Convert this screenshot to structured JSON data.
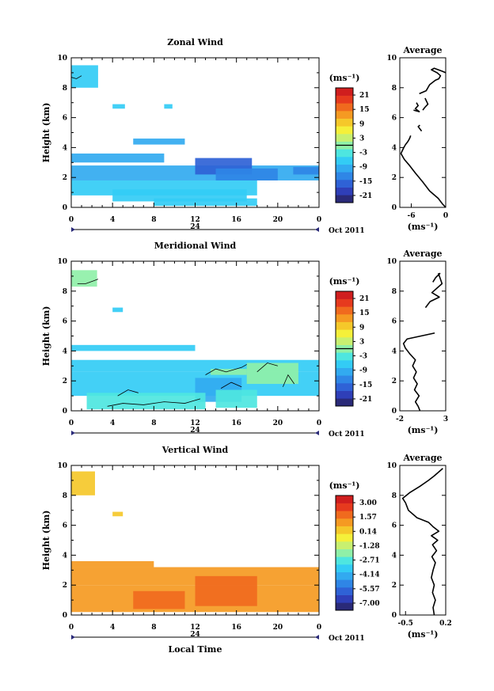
{
  "xlabel": "Local Time",
  "date_label": "Oct 2011",
  "day_label": "24",
  "avg_title": "Average",
  "units": "(ms⁻¹)",
  "height_label": "Height (km)",
  "palette": [
    "#2a2a78",
    "#2f3fb8",
    "#2f62d6",
    "#2f86e6",
    "#32aaf0",
    "#33ccf5",
    "#4ee6e0",
    "#8ff0a8",
    "#c8f070",
    "#f5f03a",
    "#f5c82a",
    "#f59a22",
    "#f06a1e",
    "#e63a1e",
    "#d01e1e"
  ],
  "chart_data": [
    {
      "type": "heatmap",
      "title": "Zonal Wind",
      "x_ticks": [
        "0",
        "4",
        "8",
        "12",
        "16",
        "20",
        "0"
      ],
      "xlim": [
        0,
        24
      ],
      "ylim": [
        0,
        10
      ],
      "y_ticks": [
        "0",
        "2",
        "4",
        "6",
        "8",
        "10"
      ],
      "colorbar": {
        "labels": [
          "21",
          "15",
          "9",
          "3",
          "-3",
          "-9",
          "-15",
          "-21"
        ],
        "range": [
          -24,
          24
        ],
        "contour_value": 0
      },
      "cells": [
        {
          "x0": 0.0,
          "x1": 2.6,
          "y0": 8.0,
          "y1": 9.5,
          "v": -6
        },
        {
          "x0": 4.0,
          "x1": 5.2,
          "y0": 6.6,
          "y1": 6.9,
          "v": -5
        },
        {
          "x0": 9.0,
          "x1": 9.8,
          "y0": 6.6,
          "y1": 6.9,
          "v": -5
        },
        {
          "x0": 6.0,
          "x1": 11.0,
          "y0": 4.2,
          "y1": 4.6,
          "v": -10
        },
        {
          "x0": 0.0,
          "x1": 9.0,
          "y0": 3.0,
          "y1": 3.6,
          "v": -11
        },
        {
          "x0": 0.0,
          "x1": 24.0,
          "y0": 1.8,
          "y1": 2.8,
          "v": -11
        },
        {
          "x0": 0.0,
          "x1": 18.0,
          "y0": 0.8,
          "y1": 1.8,
          "v": -8
        },
        {
          "x0": 12.0,
          "x1": 17.5,
          "y0": 2.2,
          "y1": 3.3,
          "v": -15
        },
        {
          "x0": 14.0,
          "x1": 20.0,
          "y0": 1.8,
          "y1": 2.6,
          "v": -13
        },
        {
          "x0": 21.5,
          "x1": 24.0,
          "y0": 2.2,
          "y1": 2.7,
          "v": -13
        },
        {
          "x0": 4.0,
          "x1": 17.0,
          "y0": 0.4,
          "y1": 1.2,
          "v": -6
        },
        {
          "x0": 8.0,
          "x1": 18.0,
          "y0": 0.1,
          "y1": 0.6,
          "v": -8
        }
      ],
      "contours": [
        [
          [
            0.0,
            8.7
          ],
          [
            0.5,
            8.6
          ],
          [
            1.0,
            8.8
          ]
        ]
      ],
      "average": {
        "xlim": [
          -8,
          0
        ],
        "x_ticks": [
          "-6",
          "0"
        ],
        "x_tick_values": [
          -6,
          0
        ],
        "ylim": [
          0,
          10
        ],
        "y_ticks": [
          "0",
          "2",
          "4",
          "6",
          "8",
          "10"
        ],
        "segments": [
          [
            [
              0,
              0
            ],
            [
              -0.5,
              0.2
            ],
            [
              -1.3,
              0.6
            ],
            [
              -2.8,
              1.1
            ],
            [
              -4.0,
              1.7
            ],
            [
              -5.3,
              2.3
            ],
            [
              -6.3,
              2.8
            ],
            [
              -7.2,
              3.2
            ],
            [
              -7.8,
              3.6
            ],
            [
              -7.3,
              4.0
            ],
            [
              -7.0,
              4.2
            ],
            [
              -6.6,
              4.4
            ],
            [
              -6.3,
              4.6
            ],
            [
              -6.1,
              4.8
            ]
          ],
          [
            [
              -4.2,
              5.1
            ],
            [
              -4.8,
              5.4
            ],
            [
              -4.5,
              5.5
            ]
          ],
          [
            [
              -5.6,
              6.5
            ],
            [
              -4.6,
              6.4
            ],
            [
              -5.3,
              6.6
            ],
            [
              -4.8,
              6.8
            ],
            [
              -5.1,
              7.0
            ]
          ],
          [
            [
              -4.0,
              6.5
            ],
            [
              -3.6,
              6.7
            ],
            [
              -3.1,
              6.9
            ],
            [
              -3.6,
              7.3
            ]
          ],
          [
            [
              -4.6,
              7.6
            ],
            [
              -3.4,
              7.8
            ],
            [
              -2.8,
              8.2
            ],
            [
              -1.8,
              8.5
            ],
            [
              -1.2,
              8.6
            ],
            [
              -0.9,
              8.8
            ],
            [
              -1.5,
              9.0
            ],
            [
              -2.5,
              9.2
            ],
            [
              -2.0,
              9.3
            ],
            [
              -0.6,
              9.1
            ],
            [
              0,
              9.0
            ]
          ]
        ]
      }
    },
    {
      "type": "heatmap",
      "title": "Meridional Wind",
      "x_ticks": [
        "0",
        "4",
        "8",
        "12",
        "16",
        "20",
        "0"
      ],
      "xlim": [
        0,
        24
      ],
      "ylim": [
        0,
        10
      ],
      "y_ticks": [
        "0",
        "2",
        "4",
        "6",
        "8",
        "10"
      ],
      "colorbar": {
        "labels": [
          "21",
          "15",
          "9",
          "3",
          "-3",
          "-9",
          "-15",
          "-21"
        ],
        "range": [
          -24,
          24
        ],
        "contour_value": 0
      },
      "cells": [
        {
          "x0": 0.0,
          "x1": 2.5,
          "y0": 8.3,
          "y1": 9.4,
          "v": 0
        },
        {
          "x0": 4.0,
          "x1": 5.0,
          "y0": 6.6,
          "y1": 6.9,
          "v": -5
        },
        {
          "x0": 0.0,
          "x1": 12.0,
          "y0": 4.0,
          "y1": 4.4,
          "v": -5
        },
        {
          "x0": 0.0,
          "x1": 24.0,
          "y0": 2.6,
          "y1": 3.4,
          "v": -5
        },
        {
          "x0": 0.0,
          "x1": 24.0,
          "y0": 1.0,
          "y1": 2.6,
          "v": -6
        },
        {
          "x0": 12.0,
          "x1": 16.5,
          "y0": 0.6,
          "y1": 2.2,
          "v": -9
        },
        {
          "x0": 1.5,
          "x1": 13.0,
          "y0": 0.1,
          "y1": 1.2,
          "v": -2
        },
        {
          "x0": 14.0,
          "x1": 18.0,
          "y0": 0.2,
          "y1": 1.4,
          "v": -4
        },
        {
          "x0": 17.0,
          "x1": 22.0,
          "y0": 1.8,
          "y1": 3.2,
          "v": -1
        },
        {
          "x0": 13.5,
          "x1": 17.0,
          "y0": 2.4,
          "y1": 2.8,
          "v": 0
        }
      ],
      "contours": [
        [
          [
            0.6,
            8.5
          ],
          [
            1.4,
            8.5
          ],
          [
            2.2,
            8.7
          ],
          [
            2.6,
            8.8
          ]
        ],
        [
          [
            3.5,
            0.3
          ],
          [
            5.0,
            0.5
          ],
          [
            7.0,
            0.4
          ],
          [
            9.0,
            0.6
          ],
          [
            11.0,
            0.5
          ],
          [
            12.5,
            0.8
          ]
        ],
        [
          [
            4.5,
            1.0
          ],
          [
            5.5,
            1.4
          ],
          [
            6.5,
            1.2
          ]
        ],
        [
          [
            13.0,
            2.4
          ],
          [
            14.0,
            2.8
          ],
          [
            15.0,
            2.6
          ],
          [
            16.5,
            2.9
          ],
          [
            17.0,
            3.1
          ]
        ],
        [
          [
            18.0,
            2.6
          ],
          [
            19.0,
            3.2
          ],
          [
            20.0,
            3.0
          ]
        ],
        [
          [
            14.5,
            1.5
          ],
          [
            15.5,
            1.9
          ],
          [
            16.5,
            1.6
          ]
        ],
        [
          [
            20.5,
            1.6
          ],
          [
            21.0,
            2.4
          ],
          [
            21.6,
            1.8
          ]
        ]
      ],
      "average": {
        "xlim": [
          -2,
          3
        ],
        "x_ticks": [
          "-2",
          "3"
        ],
        "x_tick_values": [
          -2,
          3
        ],
        "ylim": [
          0,
          10
        ],
        "y_ticks": [
          "0",
          "2",
          "4",
          "6",
          "8",
          "10"
        ],
        "segments": [
          [
            [
              0.2,
              0
            ],
            [
              0.0,
              0.3
            ],
            [
              -0.3,
              0.6
            ],
            [
              0.1,
              1.0
            ],
            [
              -0.4,
              1.4
            ],
            [
              -0.1,
              1.8
            ],
            [
              -0.5,
              2.2
            ],
            [
              -0.2,
              2.6
            ],
            [
              -0.6,
              3.0
            ],
            [
              -0.3,
              3.4
            ],
            [
              -0.9,
              3.8
            ],
            [
              -1.4,
              4.2
            ],
            [
              -1.6,
              4.5
            ],
            [
              -1.2,
              4.8
            ],
            [
              1.8,
              5.2
            ]
          ],
          [
            [
              0.8,
              6.9
            ],
            [
              1.3,
              7.3
            ],
            [
              2.3,
              7.6
            ],
            [
              1.5,
              7.9
            ],
            [
              2.6,
              8.5
            ],
            [
              2.2,
              9.2
            ]
          ],
          [
            [
              2.4,
              9.2
            ],
            [
              1.9,
              8.9
            ],
            [
              1.6,
              8.6
            ]
          ]
        ]
      }
    },
    {
      "type": "heatmap",
      "title": "Vertical Wind",
      "x_ticks": [
        "0",
        "4",
        "8",
        "12",
        "16",
        "20",
        "0"
      ],
      "xlim": [
        0,
        24
      ],
      "ylim": [
        0,
        10
      ],
      "y_ticks": [
        "0",
        "2",
        "4",
        "6",
        "8",
        "10"
      ],
      "colorbar": {
        "labels": [
          "3.00",
          "1.57",
          "0.14",
          "-1.28",
          "-2.71",
          "-4.14",
          "-5.57",
          "-7.00"
        ],
        "range": [
          -7.71,
          3.71
        ]
      },
      "cells": [
        {
          "x0": 0.0,
          "x1": 2.3,
          "y0": 8.0,
          "y1": 9.6,
          "v": 0.0
        },
        {
          "x0": 4.0,
          "x1": 5.0,
          "y0": 6.6,
          "y1": 6.9,
          "v": 0.2
        },
        {
          "x0": 0.0,
          "x1": 8.0,
          "y0": 3.2,
          "y1": 3.6,
          "v": 1.2
        },
        {
          "x0": 0.0,
          "x1": 24.0,
          "y0": 2.0,
          "y1": 3.2,
          "v": 1.0
        },
        {
          "x0": 0.0,
          "x1": 24.0,
          "y0": 0.2,
          "y1": 2.0,
          "v": 1.3
        },
        {
          "x0": 12.0,
          "x1": 18.0,
          "y0": 0.6,
          "y1": 2.6,
          "v": 2.0
        },
        {
          "x0": 6.0,
          "x1": 11.0,
          "y0": 0.4,
          "y1": 1.6,
          "v": 1.6
        }
      ],
      "contours": [],
      "average": {
        "xlim": [
          -0.6,
          0.2
        ],
        "x_ticks": [
          "-0.5",
          "0.2"
        ],
        "x_tick_values": [
          -0.5,
          0.2
        ],
        "ylim": [
          0,
          10
        ],
        "y_ticks": [
          "0",
          "2",
          "4",
          "6",
          "8",
          "10"
        ],
        "segments": [
          [
            [
              0.0,
              0
            ],
            [
              -0.02,
              0.5
            ],
            [
              0.02,
              1.0
            ],
            [
              -0.03,
              1.5
            ],
            [
              0.0,
              2.0
            ],
            [
              -0.05,
              2.5
            ],
            [
              -0.02,
              3.0
            ],
            [
              0.02,
              3.5
            ],
            [
              -0.04,
              3.9
            ],
            [
              0.04,
              4.3
            ],
            [
              -0.03,
              4.7
            ],
            [
              0.06,
              5.0
            ],
            [
              -0.05,
              5.3
            ],
            [
              0.08,
              5.6
            ],
            [
              -0.02,
              5.9
            ],
            [
              -0.1,
              6.2
            ],
            [
              -0.3,
              6.5
            ],
            [
              -0.45,
              7.0
            ],
            [
              -0.5,
              7.5
            ],
            [
              -0.55,
              7.8
            ],
            [
              -0.42,
              8.2
            ],
            [
              -0.25,
              8.6
            ],
            [
              -0.1,
              9.0
            ],
            [
              0.0,
              9.3
            ],
            [
              0.15,
              9.8
            ]
          ]
        ]
      }
    }
  ]
}
